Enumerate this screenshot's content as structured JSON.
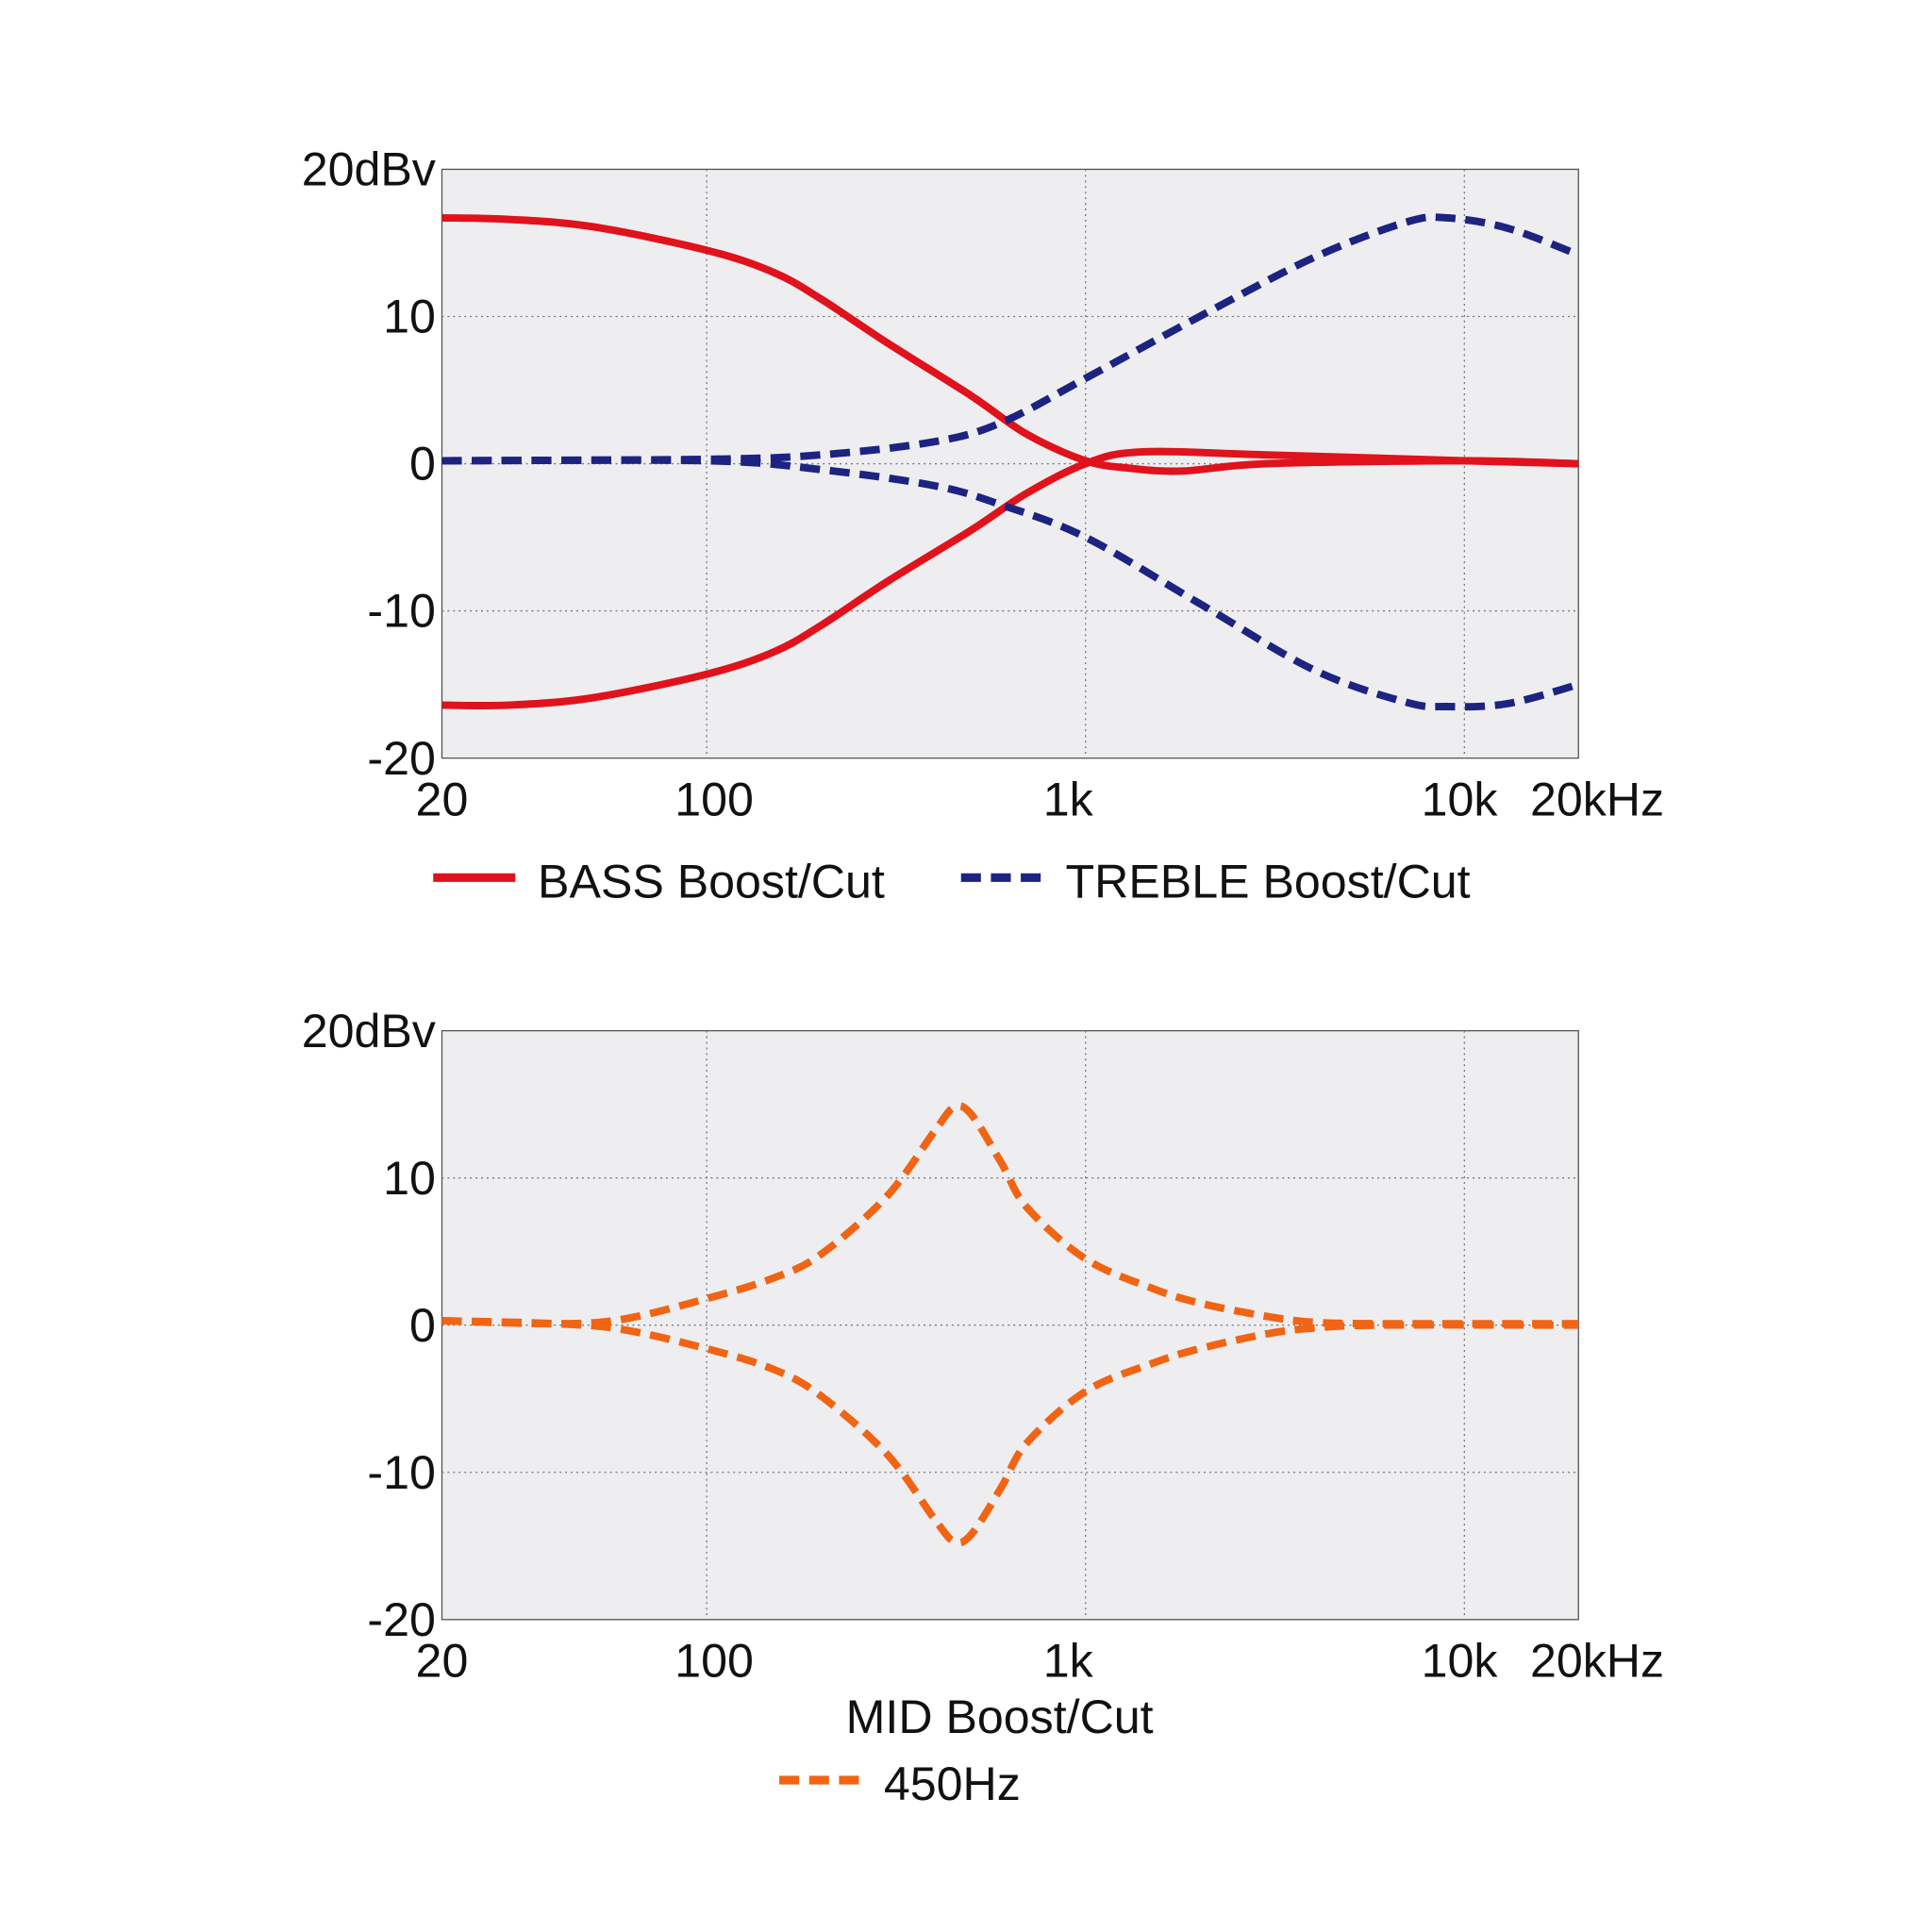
{
  "chart_data": [
    {
      "type": "line",
      "x_scale": "log",
      "xlim": [
        20,
        20000
      ],
      "ylim": [
        -20,
        20
      ],
      "grid": true,
      "legend_placement": "bottom",
      "y_ticks": [
        {
          "v": 20,
          "label": "20dBv"
        },
        {
          "v": 10,
          "label": "10"
        },
        {
          "v": 0,
          "label": "0"
        },
        {
          "v": -10,
          "label": "-10"
        },
        {
          "v": -20,
          "label": "-20"
        }
      ],
      "x_ticks": [
        {
          "v": 20,
          "label": "20"
        },
        {
          "v": 100,
          "label": "100"
        },
        {
          "v": 1000,
          "label": "1k"
        },
        {
          "v": 10000,
          "label": "10k"
        },
        {
          "v": 20000,
          "label": "20kHz"
        }
      ],
      "legend": [
        {
          "label": "BASS Boost/Cut",
          "color": "#e0121b",
          "style": "solid"
        },
        {
          "label": "TREBLE Boost/Cut",
          "color": "#1c2380",
          "style": "dashed"
        }
      ],
      "series": [
        {
          "group": 0,
          "color": "#e0121b",
          "style": "solid",
          "x": [
            20,
            30,
            50,
            100,
            150,
            200,
            300,
            500,
            700,
            1000,
            1300,
            1800,
            3000,
            10000,
            20000
          ],
          "y": [
            16.7,
            16.6,
            16.1,
            14.5,
            13,
            11.2,
            8.2,
            4.6,
            2,
            0.2,
            -0.3,
            -0.5,
            0,
            0.2,
            0
          ]
        },
        {
          "group": 0,
          "color": "#e0121b",
          "style": "solid",
          "x": [
            20,
            30,
            50,
            100,
            150,
            200,
            300,
            500,
            700,
            1000,
            1400,
            3000,
            10000,
            20000
          ],
          "y": [
            -16.4,
            -16.4,
            -15.9,
            -14.3,
            -12.8,
            -11,
            -8,
            -4.5,
            -2,
            0,
            0.8,
            0.6,
            0.2,
            0
          ]
        },
        {
          "group": 0,
          "color": "#1c2380",
          "style": "dashed",
          "x": [
            20,
            100,
            200,
            400,
            600,
            1000,
            2000,
            4000,
            7000,
            9000,
            13000,
            20000
          ],
          "y": [
            0.2,
            0.3,
            0.6,
            1.5,
            2.8,
            5.8,
            10,
            14,
            16.4,
            16.7,
            16,
            14.2
          ]
        },
        {
          "group": 0,
          "color": "#1c2380",
          "style": "dashed",
          "x": [
            20,
            100,
            200,
            400,
            600,
            1000,
            2000,
            4000,
            7000,
            9000,
            13000,
            20000
          ],
          "y": [
            0.2,
            0.2,
            -0.4,
            -1.5,
            -2.8,
            -5,
            -9.5,
            -14,
            -16.2,
            -16.5,
            -16.3,
            -15
          ]
        }
      ]
    },
    {
      "type": "line",
      "x_scale": "log",
      "xlim": [
        20,
        20000
      ],
      "ylim": [
        -20,
        20
      ],
      "grid": true,
      "legend_placement": "bottom",
      "xlabel": "MID Boost/Cut",
      "y_ticks": [
        {
          "v": 20,
          "label": "20dBv"
        },
        {
          "v": 10,
          "label": "10"
        },
        {
          "v": 0,
          "label": "0"
        },
        {
          "v": -10,
          "label": "-10"
        },
        {
          "v": -20,
          "label": "-20"
        }
      ],
      "x_ticks": [
        {
          "v": 20,
          "label": "20"
        },
        {
          "v": 100,
          "label": "100"
        },
        {
          "v": 1000,
          "label": "1k"
        },
        {
          "v": 10000,
          "label": "10k"
        },
        {
          "v": 20000,
          "label": "20kHz"
        }
      ],
      "legend": [
        {
          "label": "450Hz",
          "color": "#f06414",
          "style": "dashed"
        }
      ],
      "series": [
        {
          "color": "#f06414",
          "style": "dashed",
          "x": [
            20,
            40,
            60,
            100,
            150,
            200,
            300,
            400,
            450,
            500,
            600,
            700,
            1000,
            1500,
            2000,
            3000,
            4000,
            6000,
            20000
          ],
          "y": [
            0.3,
            0.1,
            0.4,
            1.8,
            3.2,
            4.8,
            8.8,
            13.2,
            14.8,
            14.3,
            11,
            8,
            4.5,
            2.5,
            1.5,
            0.6,
            0.2,
            0.1,
            0.1
          ]
        },
        {
          "color": "#f06414",
          "style": "dashed",
          "x": [
            20,
            40,
            60,
            100,
            150,
            200,
            300,
            400,
            450,
            500,
            600,
            700,
            1000,
            1500,
            2000,
            3000,
            4000,
            6000,
            20000
          ],
          "y": [
            0.3,
            0.1,
            -0.3,
            -1.6,
            -3,
            -4.8,
            -8.8,
            -13.2,
            -14.7,
            -14.2,
            -11,
            -8,
            -4.5,
            -2.6,
            -1.6,
            -0.6,
            -0.2,
            0,
            0
          ]
        }
      ]
    }
  ]
}
